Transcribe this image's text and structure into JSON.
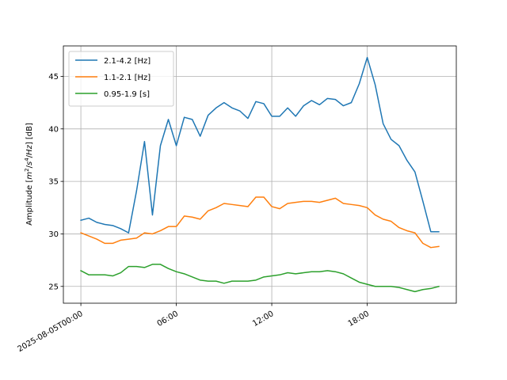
{
  "chart_data": {
    "type": "line",
    "ylabel_parts": [
      "Amplitude [",
      "m",
      "2",
      "/",
      "s",
      "4",
      "/",
      "Hz",
      "] [dB]"
    ],
    "ylabel": "Amplitude [m^2/s^4/Hz] [dB]",
    "xlabel": "",
    "x_tick_labels": [
      "2025-08-05T00:00",
      "06:00",
      "12:00",
      "18:00"
    ],
    "x_tick_hours": [
      0,
      6,
      12,
      18
    ],
    "xlim_hours": [
      -1.1,
      23.6
    ],
    "y_ticks": [
      25,
      30,
      35,
      40,
      45
    ],
    "ylim": [
      23.4,
      47.9
    ],
    "grid": true,
    "legend_position": "upper-left",
    "x_hours": [
      0,
      0.5,
      1,
      1.5,
      2,
      2.5,
      3,
      3.5,
      4,
      4.5,
      5,
      5.5,
      6,
      6.5,
      7,
      7.5,
      8,
      8.5,
      9,
      9.5,
      10,
      10.5,
      11,
      11.5,
      12,
      12.5,
      13,
      13.5,
      14,
      14.5,
      15,
      15.5,
      16,
      16.5,
      17,
      17.5,
      18,
      18.5,
      19,
      19.5,
      20,
      20.5,
      21,
      21.5,
      22,
      22.5
    ],
    "series": [
      {
        "name": "2.1-4.2 [Hz]",
        "color": "#1f77b4",
        "values": [
          31.3,
          31.5,
          31.1,
          30.9,
          30.8,
          30.5,
          30.1,
          34.1,
          38.8,
          31.8,
          38.4,
          40.9,
          38.4,
          41.1,
          40.9,
          39.3,
          41.3,
          42.0,
          42.5,
          42.0,
          41.7,
          41.0,
          42.6,
          42.4,
          41.2,
          41.2,
          42.0,
          41.2,
          42.2,
          42.7,
          42.3,
          42.9,
          42.8,
          42.2,
          42.5,
          44.3,
          46.8,
          44.2,
          40.5,
          39.0,
          38.4,
          37.0,
          35.9,
          33.1,
          30.2,
          30.2
        ]
      },
      {
        "name": "1.1-2.1 [Hz]",
        "color": "#ff7f0e",
        "values": [
          30.1,
          29.8,
          29.5,
          29.1,
          29.1,
          29.4,
          29.5,
          29.6,
          30.1,
          30.0,
          30.3,
          30.7,
          30.7,
          31.7,
          31.6,
          31.4,
          32.2,
          32.5,
          32.9,
          32.8,
          32.7,
          32.6,
          33.5,
          33.5,
          32.6,
          32.4,
          32.9,
          33.0,
          33.1,
          33.1,
          33.0,
          33.2,
          33.4,
          32.9,
          32.8,
          32.7,
          32.5,
          31.8,
          31.4,
          31.2,
          30.6,
          30.3,
          30.1,
          29.1,
          28.7,
          28.8
        ]
      },
      {
        "name": "0.95-1.9 [s]",
        "color": "#2ca02c",
        "values": [
          26.5,
          26.1,
          26.1,
          26.1,
          26.0,
          26.3,
          26.9,
          26.9,
          26.8,
          27.1,
          27.1,
          26.7,
          26.4,
          26.2,
          25.9,
          25.6,
          25.5,
          25.5,
          25.3,
          25.5,
          25.5,
          25.5,
          25.6,
          25.9,
          26.0,
          26.1,
          26.3,
          26.2,
          26.3,
          26.4,
          26.4,
          26.5,
          26.4,
          26.2,
          25.8,
          25.4,
          25.2,
          25.0,
          25.0,
          25.0,
          24.9,
          24.7,
          24.5,
          24.7,
          24.8,
          25.0
        ]
      }
    ]
  }
}
